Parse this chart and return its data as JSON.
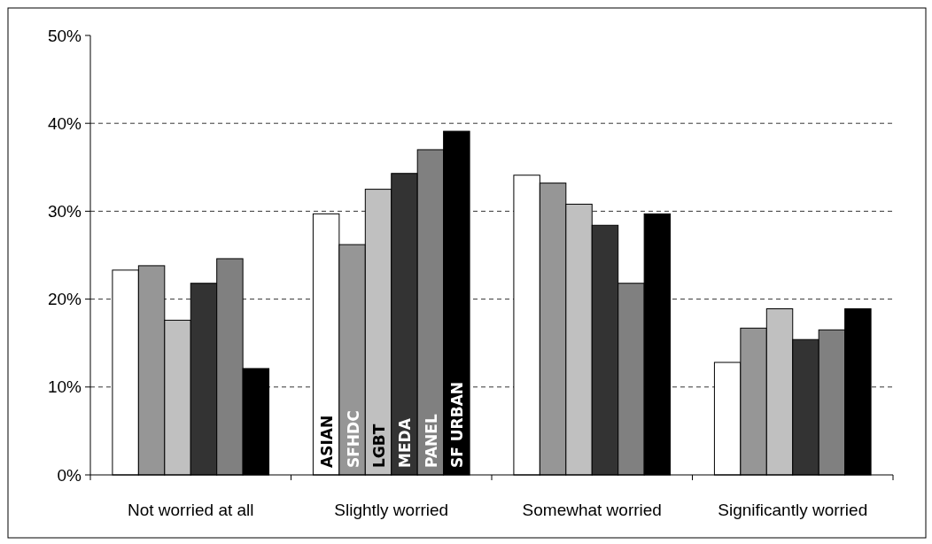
{
  "chart_data": {
    "type": "bar",
    "categories": [
      "Not worried at all",
      "Slightly worried",
      "Somewhat worried",
      "Significantly worried"
    ],
    "series": [
      {
        "name": "ASIAN",
        "color": "#ffffff",
        "values": [
          23.3,
          29.7,
          34.1,
          12.8
        ]
      },
      {
        "name": "SFHDC",
        "color": "#969696",
        "values": [
          23.8,
          26.2,
          33.2,
          16.7
        ]
      },
      {
        "name": "LGBT",
        "color": "#c0c0c0",
        "values": [
          17.6,
          32.5,
          30.8,
          18.9
        ]
      },
      {
        "name": "MEDA",
        "color": "#333333",
        "values": [
          21.8,
          34.3,
          28.4,
          15.4
        ]
      },
      {
        "name": "PANEL",
        "color": "#808080",
        "values": [
          24.6,
          37.0,
          21.8,
          16.5
        ]
      },
      {
        "name": "SF URBAN",
        "color": "#000000",
        "values": [
          12.1,
          39.1,
          29.7,
          18.9
        ]
      }
    ],
    "ylim": [
      0,
      50
    ],
    "yticks": [
      {
        "value": 0,
        "label": "0%"
      },
      {
        "value": 10,
        "label": "10%"
      },
      {
        "value": 20,
        "label": "20%"
      },
      {
        "value": 30,
        "label": "30%"
      },
      {
        "value": 40,
        "label": "40%"
      },
      {
        "value": 50,
        "label": "50%"
      }
    ],
    "grid": "y"
  }
}
